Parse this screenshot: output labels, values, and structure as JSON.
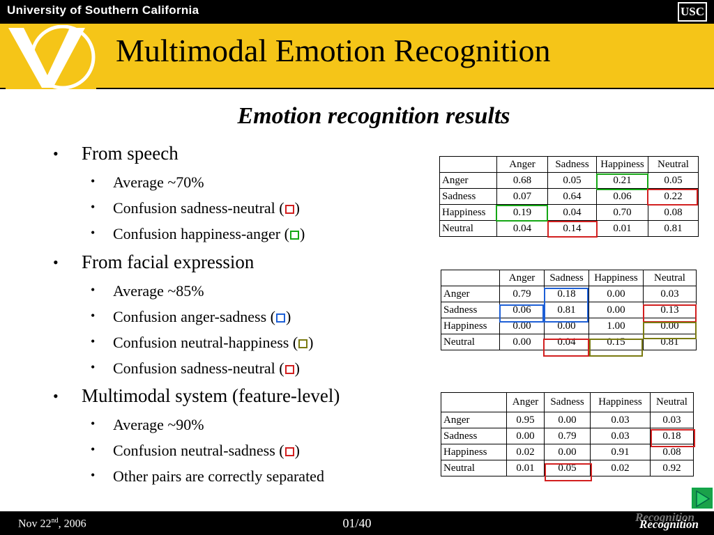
{
  "header": {
    "university": "University of Southern California",
    "logo": "USC"
  },
  "title": "Multimodal Emotion Recognition",
  "subtitle": "Emotion recognition results",
  "bullets": {
    "speech": {
      "label": "From speech",
      "items": [
        "Average ~70%",
        "Confusion sadness-neutral (",
        "Confusion happiness-anger ("
      ]
    },
    "face": {
      "label": "From facial expression",
      "items": [
        "Average ~85%",
        "Confusion anger-sadness (",
        "Confusion neutral-happiness (",
        "Confusion sadness-neutral ("
      ]
    },
    "multi": {
      "label": "Multimodal system (feature-level)",
      "items": [
        "Average ~90%",
        "Confusion neutral-sadness (",
        "Other pairs are correctly separated"
      ]
    },
    "close_paren": ")"
  },
  "marker_colors": {
    "red": "#d21f1f",
    "green": "#14a614",
    "blue": "#1d5fd6",
    "olive": "#7a7a10"
  },
  "tables": {
    "speech": {
      "headers": [
        "Anger",
        "Sadness",
        "Happiness",
        "Neutral"
      ],
      "rows": [
        {
          "label": "Anger",
          "values": [
            "0.68",
            "0.05",
            "0.21",
            "0.05"
          ]
        },
        {
          "label": "Sadness",
          "values": [
            "0.07",
            "0.64",
            "0.06",
            "0.22"
          ]
        },
        {
          "label": "Happiness",
          "values": [
            "0.19",
            "0.04",
            "0.70",
            "0.08"
          ]
        },
        {
          "label": "Neutral",
          "values": [
            "0.04",
            "0.14",
            "0.01",
            "0.81"
          ]
        }
      ]
    },
    "face": {
      "headers": [
        "Anger",
        "Sadness",
        "Happiness",
        "Neutral"
      ],
      "rows": [
        {
          "label": "Anger",
          "values": [
            "0.79",
            "0.18",
            "0.00",
            "0.03"
          ]
        },
        {
          "label": "Sadness",
          "values": [
            "0.06",
            "0.81",
            "0.00",
            "0.13"
          ]
        },
        {
          "label": "Happiness",
          "values": [
            "0.00",
            "0.00",
            "1.00",
            "0.00"
          ]
        },
        {
          "label": "Neutral",
          "values": [
            "0.00",
            "0.04",
            "0.15",
            "0.81"
          ]
        }
      ]
    },
    "multi": {
      "headers": [
        "Anger",
        "Sadness",
        "Happiness",
        "Neutral"
      ],
      "rows": [
        {
          "label": "Anger",
          "values": [
            "0.95",
            "0.00",
            "0.03",
            "0.03"
          ]
        },
        {
          "label": "Sadness",
          "values": [
            "0.00",
            "0.79",
            "0.03",
            "0.18"
          ]
        },
        {
          "label": "Happiness",
          "values": [
            "0.02",
            "0.00",
            "0.91",
            "0.08"
          ]
        },
        {
          "label": "Neutral",
          "values": [
            "0.01",
            "0.05",
            "0.02",
            "0.92"
          ]
        }
      ]
    }
  },
  "footer": {
    "date_prefix": "Nov 22",
    "date_sup": "nd",
    "date_suffix": ", 2006",
    "page": "01/40",
    "section": "Recognition",
    "nav_icon": "play-arrow-icon"
  }
}
